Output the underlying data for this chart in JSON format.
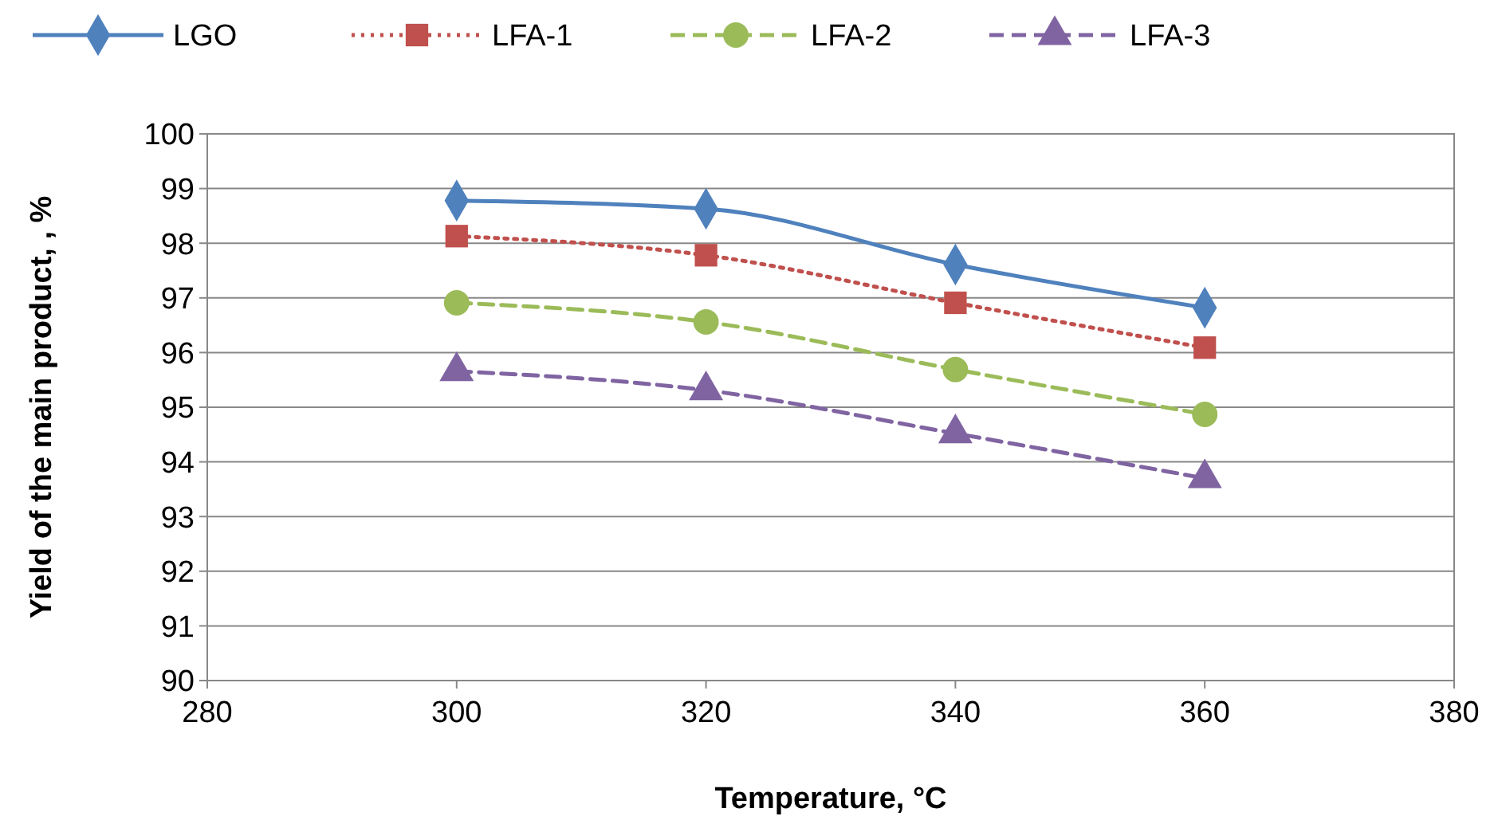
{
  "chart_data": {
    "type": "line",
    "xlabel": "Temperature, °C",
    "ylabel": "Yield of the main product, , %",
    "x": [
      300,
      320,
      340,
      360
    ],
    "xlim": [
      280,
      380
    ],
    "xticks": [
      280,
      300,
      320,
      340,
      360,
      380
    ],
    "ylim": [
      90,
      100
    ],
    "yticks": [
      90,
      91,
      92,
      93,
      94,
      95,
      96,
      97,
      98,
      99,
      100
    ],
    "grid": "y",
    "legend": "top",
    "series": [
      {
        "name": "LGO",
        "color": "#4f81bd",
        "marker": "diamond",
        "line_style": "solid",
        "values": [
          98.78,
          98.63,
          97.61,
          96.82
        ]
      },
      {
        "name": "LFA-1",
        "color": "#c0504d",
        "marker": "square",
        "line_style": "dotted",
        "values": [
          98.13,
          97.78,
          96.91,
          96.09
        ]
      },
      {
        "name": "LFA-2",
        "color": "#9bbb59",
        "marker": "circle",
        "line_style": "dashed",
        "values": [
          96.91,
          96.56,
          95.69,
          94.87
        ]
      },
      {
        "name": "LFA-3",
        "color": "#8064a2",
        "marker": "triangle",
        "line_style": "dashed",
        "values": [
          95.66,
          95.31,
          94.52,
          93.7
        ]
      }
    ]
  }
}
